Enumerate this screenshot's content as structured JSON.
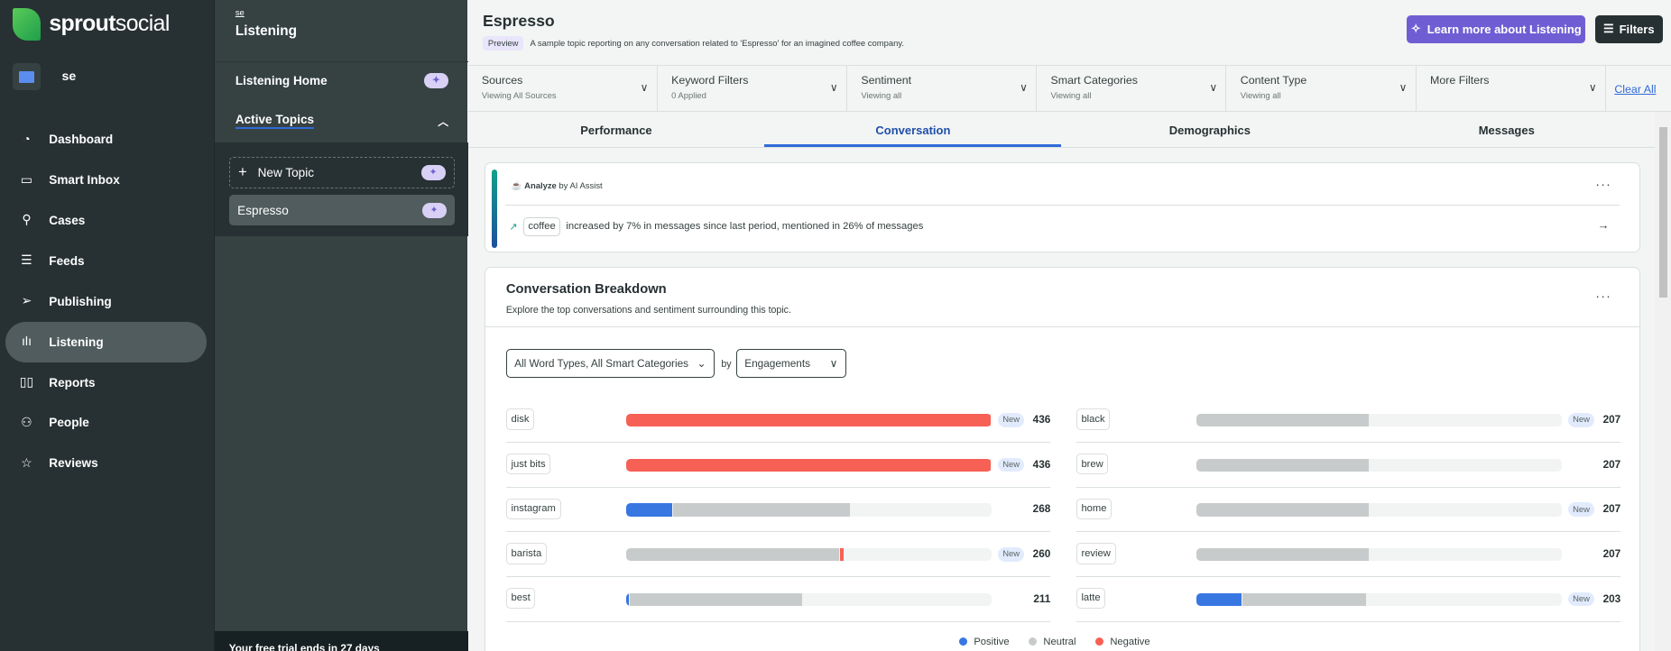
{
  "nav": {
    "logo": {
      "brand1": "sprout",
      "brand2": "social"
    },
    "workspace": "se",
    "items": [
      {
        "label": "Dashboard",
        "icon": "gauge-icon"
      },
      {
        "label": "Smart Inbox",
        "icon": "inbox-icon"
      },
      {
        "label": "Cases",
        "icon": "pin-icon"
      },
      {
        "label": "Feeds",
        "icon": "list-icon"
      },
      {
        "label": "Publishing",
        "icon": "paper-plane-icon"
      },
      {
        "label": "Listening",
        "icon": "sound-wave-icon",
        "active": true
      },
      {
        "label": "Reports",
        "icon": "bar-chart-icon"
      },
      {
        "label": "People",
        "icon": "people-icon"
      },
      {
        "label": "Reviews",
        "icon": "star-icon"
      }
    ]
  },
  "subnav": {
    "workspace": "se",
    "title": "Listening",
    "home": "Listening Home",
    "active_topics": "Active Topics",
    "new_topic": "New Topic",
    "topics": [
      "Espresso"
    ],
    "trial": "Your free trial ends in 27 days"
  },
  "header": {
    "title": "Espresso",
    "badge": "Preview",
    "description": "A sample topic reporting on any conversation related to 'Espresso' for an imagined coffee company.",
    "learn_more": "Learn more about Listening",
    "filters": "Filters"
  },
  "filters": [
    {
      "label": "Sources",
      "value": "Viewing All Sources"
    },
    {
      "label": "Keyword Filters",
      "value": "0 Applied"
    },
    {
      "label": "Sentiment",
      "value": "Viewing all"
    },
    {
      "label": "Smart Categories",
      "value": "Viewing all"
    },
    {
      "label": "Content Type",
      "value": "Viewing all"
    },
    {
      "label": "More Filters",
      "value": ""
    }
  ],
  "clear_all": "Clear All",
  "tabs": [
    {
      "label": "Performance"
    },
    {
      "label": "Conversation",
      "active": true
    },
    {
      "label": "Demographics"
    },
    {
      "label": "Messages"
    }
  ],
  "insight": {
    "analyze": "Analyze",
    "by": "by AI Assist",
    "keyword": "coffee",
    "text": "increased by 7% in messages since last period, mentioned in 26% of messages"
  },
  "breakdown": {
    "title": "Conversation Breakdown",
    "subtitle": "Explore the top conversations and sentiment surrounding this topic.",
    "word_type": "All Word Types, All Smart Categories",
    "by": "by",
    "metric": "Engagements",
    "new_label": "New",
    "legend": {
      "positive": "Positive",
      "neutral": "Neutral",
      "negative": "Negative"
    },
    "colors": {
      "positive": "#3876e2",
      "neutral": "#c8cbcb",
      "negative": "#f76055"
    }
  },
  "chart_data": {
    "type": "bar",
    "orientation": "horizontal-stacked",
    "max": 436,
    "series_names": [
      "Positive",
      "Neutral",
      "Negative"
    ],
    "rows": [
      {
        "term": "disk",
        "total": 436,
        "new": true,
        "positive": 0,
        "neutral": 0,
        "negative": 436
      },
      {
        "term": "just bits",
        "total": 436,
        "new": true,
        "positive": 0,
        "neutral": 0,
        "negative": 436
      },
      {
        "term": "instagram",
        "total": 268,
        "new": false,
        "positive": 56,
        "neutral": 212,
        "negative": 0
      },
      {
        "term": "barista",
        "total": 260,
        "new": true,
        "positive": 0,
        "neutral": 255,
        "negative": 5
      },
      {
        "term": "best",
        "total": 211,
        "new": false,
        "positive": 4,
        "neutral": 207,
        "negative": 0
      },
      {
        "term": "black",
        "total": 207,
        "new": true,
        "positive": 0,
        "neutral": 207,
        "negative": 0
      },
      {
        "term": "brew",
        "total": 207,
        "new": false,
        "positive": 0,
        "neutral": 207,
        "negative": 0
      },
      {
        "term": "home",
        "total": 207,
        "new": true,
        "positive": 0,
        "neutral": 207,
        "negative": 0
      },
      {
        "term": "review",
        "total": 207,
        "new": false,
        "positive": 0,
        "neutral": 207,
        "negative": 0
      },
      {
        "term": "latte",
        "total": 203,
        "new": true,
        "positive": 55,
        "neutral": 148,
        "negative": 0
      }
    ]
  }
}
